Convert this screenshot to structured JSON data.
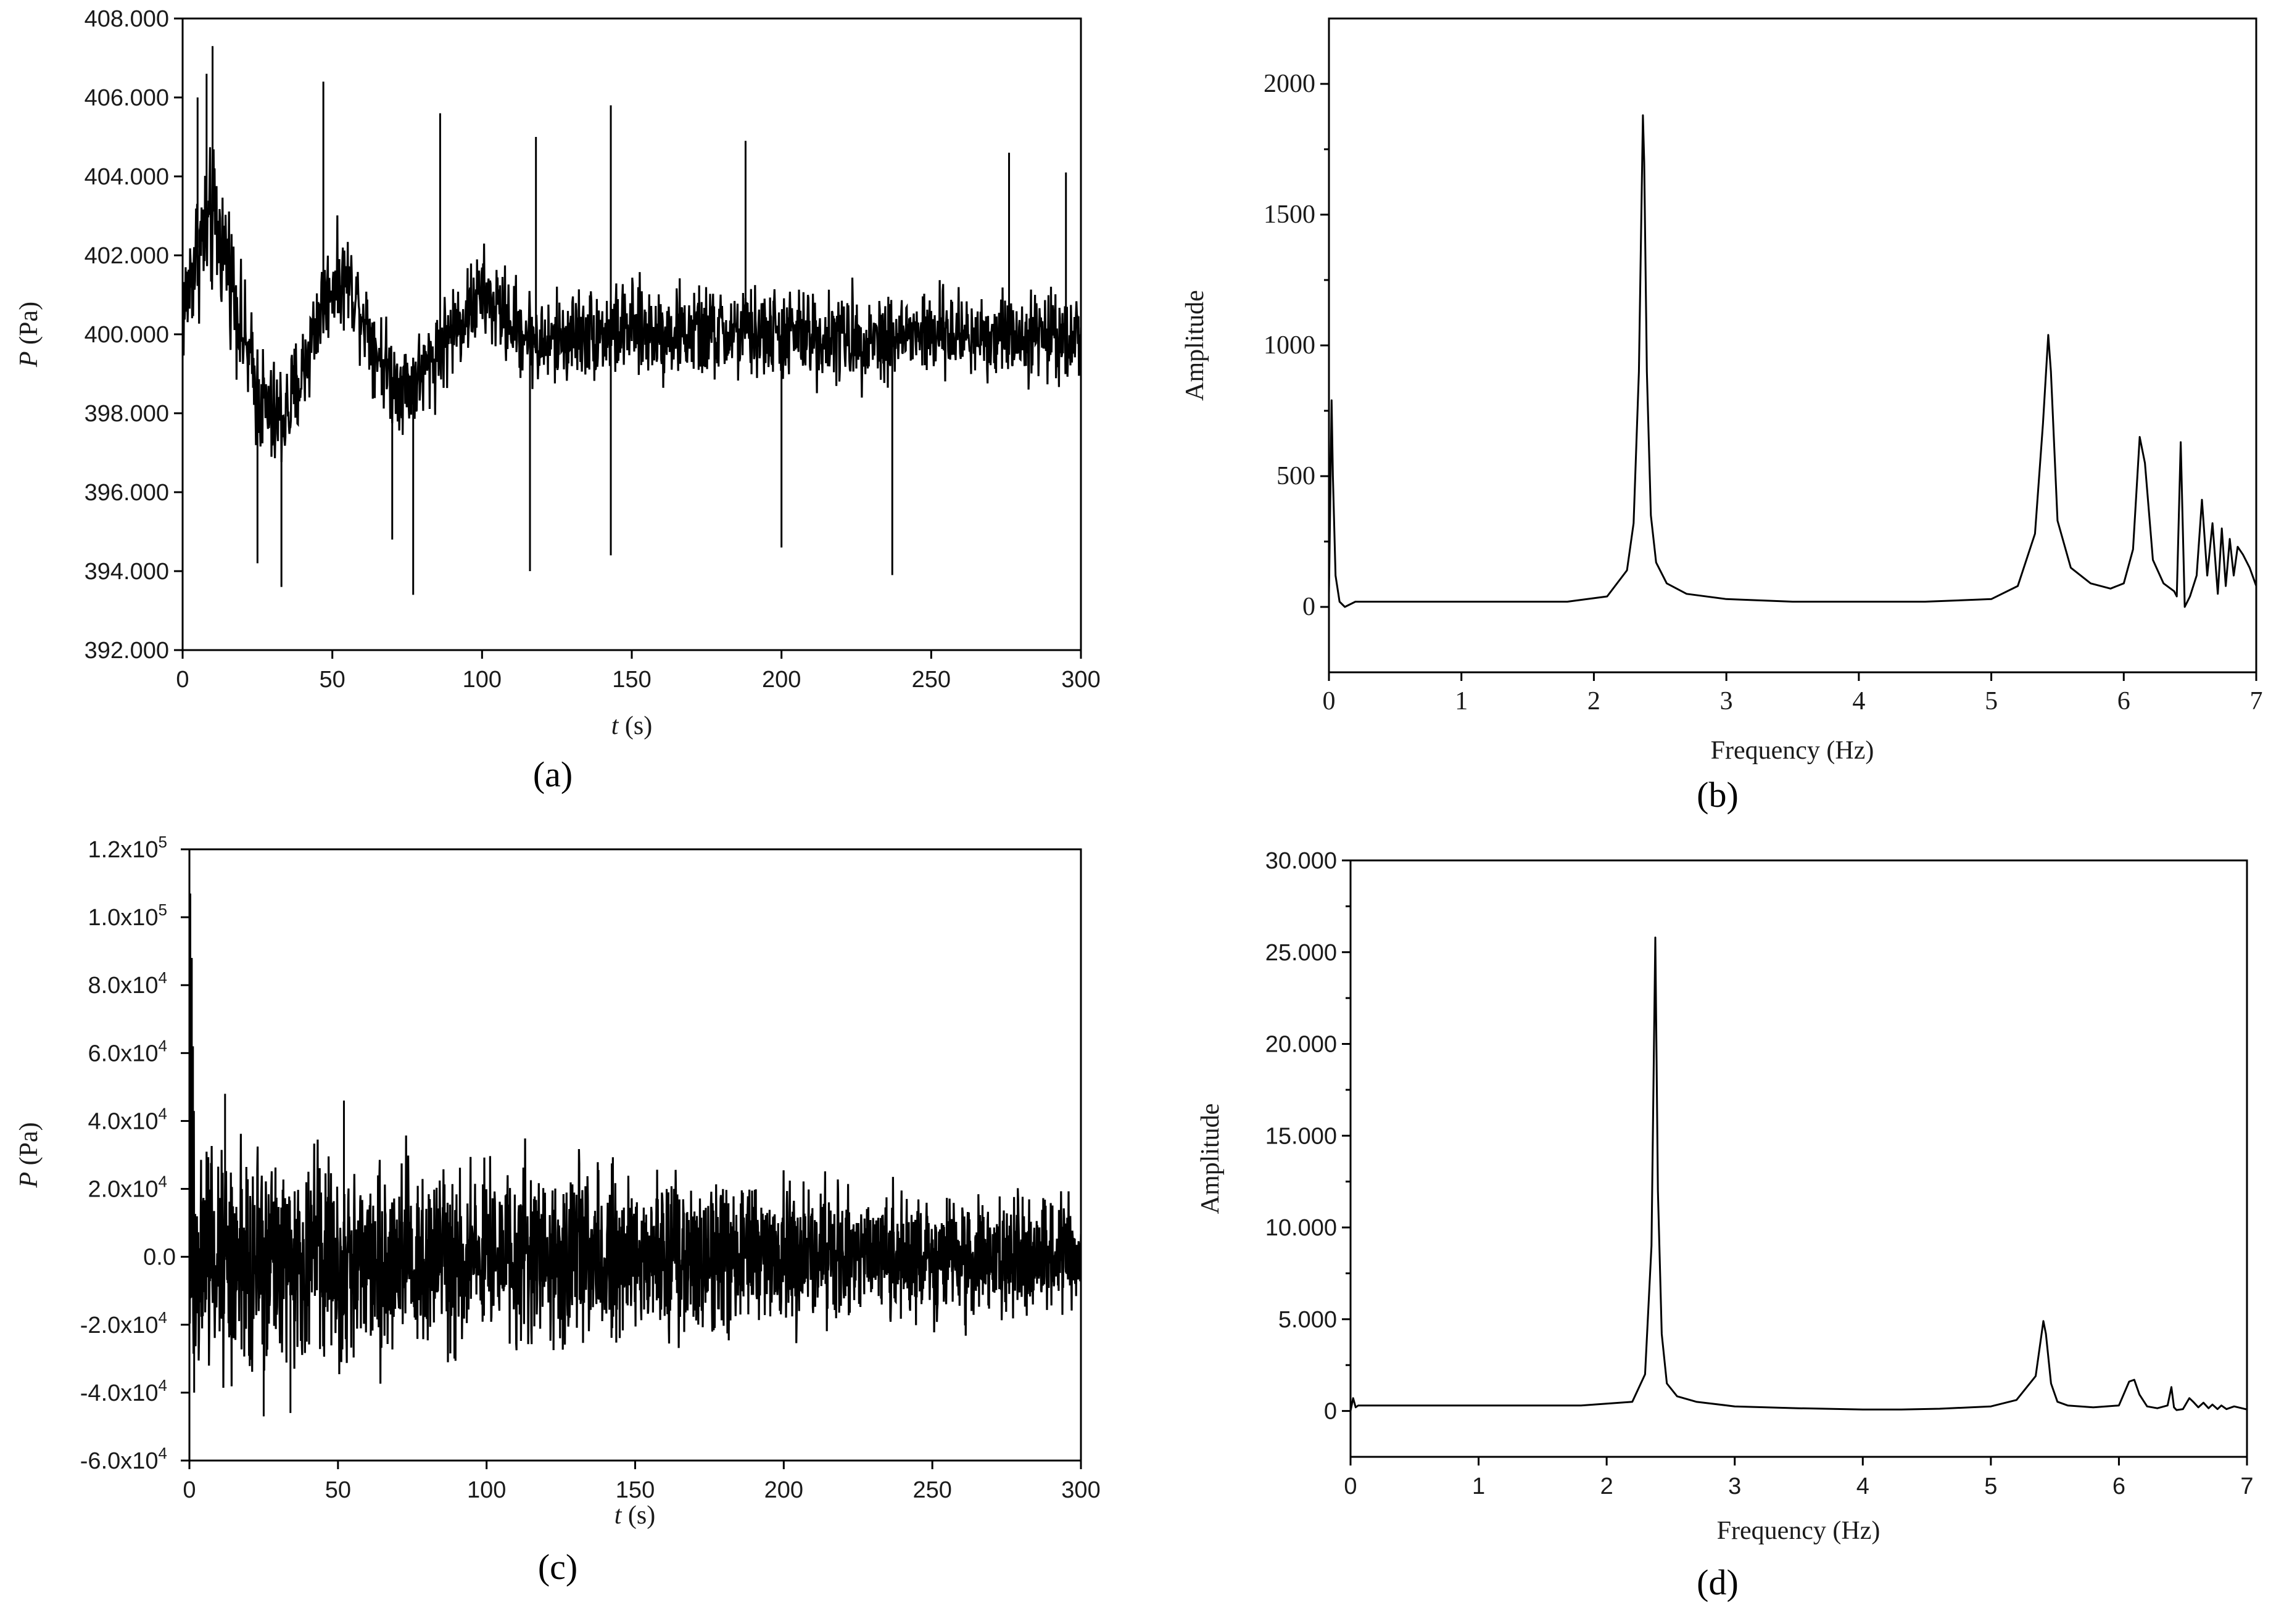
{
  "chart_data": [
    {
      "panel": "(a)",
      "type": "line",
      "xlabel_var": "t",
      "xlabel_unit": "(s)",
      "ylabel_var": "P",
      "ylabel_unit": "(Pa)",
      "xlim": [
        0,
        300
      ],
      "ylim": [
        392,
        408
      ],
      "xticks": [
        0,
        50,
        100,
        150,
        200,
        250,
        300
      ],
      "xtick_labels": [
        "0",
        "50",
        "100",
        "150",
        "200",
        "250",
        "300"
      ],
      "yticks": [
        392,
        394,
        396,
        398,
        400,
        402,
        404,
        406,
        408
      ],
      "ytick_labels": [
        "392.000",
        "394.000",
        "396.000",
        "398.000",
        "400.000",
        "402.000",
        "404.000",
        "406.000",
        "408.000"
      ],
      "envelope": {
        "t": [
          0,
          5,
          10,
          15,
          20,
          25,
          30,
          35,
          40,
          45,
          50,
          55,
          60,
          65,
          70,
          75,
          80,
          90,
          100,
          110,
          120,
          130,
          150,
          175,
          200,
          225,
          250,
          275,
          300
        ],
        "mean": [
          400.5,
          402.2,
          402.8,
          402.0,
          400.0,
          398.5,
          397.8,
          398.0,
          399.0,
          400.4,
          401.3,
          401.4,
          400.6,
          399.6,
          398.9,
          398.7,
          399.0,
          400.1,
          401.0,
          400.3,
          399.7,
          400.0,
          400.1,
          400.0,
          400.0,
          399.9,
          400.0,
          400.0,
          400.0
        ],
        "amp": [
          1.8,
          2.2,
          2.4,
          2.0,
          1.8,
          1.9,
          1.9,
          1.8,
          1.7,
          1.6,
          1.5,
          1.5,
          1.5,
          1.5,
          1.5,
          1.5,
          1.5,
          1.5,
          1.5,
          1.5,
          1.5,
          1.5,
          1.5,
          1.5,
          1.5,
          1.5,
          1.4,
          1.4,
          1.4
        ]
      },
      "spikes": [
        {
          "t": 10,
          "y": 407.3
        },
        {
          "t": 8,
          "y": 406.6
        },
        {
          "t": 47,
          "y": 406.4
        },
        {
          "t": 143,
          "y": 405.8
        },
        {
          "t": 86,
          "y": 405.6
        },
        {
          "t": 33,
          "y": 393.6
        },
        {
          "t": 77,
          "y": 393.4
        },
        {
          "t": 143,
          "y": 394.4
        },
        {
          "t": 116,
          "y": 394.0
        },
        {
          "t": 200,
          "y": 394.6
        },
        {
          "t": 237,
          "y": 393.9
        },
        {
          "t": 25,
          "y": 394.2
        },
        {
          "t": 70,
          "y": 394.8
        },
        {
          "t": 118,
          "y": 405.0
        },
        {
          "t": 188,
          "y": 404.9
        },
        {
          "t": 276,
          "y": 404.6
        },
        {
          "t": 295,
          "y": 404.1
        },
        {
          "t": 5,
          "y": 406.0
        }
      ]
    },
    {
      "panel": "(b)",
      "type": "line",
      "xlabel": "Frequency (Hz)",
      "ylabel": "Amplitude",
      "xlim": [
        0,
        7
      ],
      "ylim": [
        -250,
        2250
      ],
      "xticks": [
        0,
        1,
        2,
        3,
        4,
        5,
        6,
        7
      ],
      "xtick_labels": [
        "0",
        "1",
        "2",
        "3",
        "4",
        "5",
        "6",
        "7"
      ],
      "yticks": [
        0,
        500,
        1000,
        1500,
        2000
      ],
      "ytick_labels": [
        "0",
        "500",
        "1000",
        "1500",
        "2000"
      ],
      "x": [
        0,
        0.01,
        0.02,
        0.03,
        0.05,
        0.08,
        0.12,
        0.2,
        0.4,
        1.0,
        1.8,
        2.1,
        2.25,
        2.3,
        2.34,
        2.37,
        2.38,
        2.4,
        2.43,
        2.47,
        2.55,
        2.7,
        3.0,
        3.5,
        4.0,
        4.5,
        5.0,
        5.2,
        5.33,
        5.39,
        5.43,
        5.45,
        5.5,
        5.6,
        5.75,
        5.9,
        6.0,
        6.07,
        6.12,
        6.16,
        6.22,
        6.3,
        6.38,
        6.4,
        6.43,
        6.46,
        6.5,
        6.55,
        6.59,
        6.63,
        6.67,
        6.71,
        6.74,
        6.77,
        6.8,
        6.83,
        6.86,
        6.9,
        6.95,
        7.0
      ],
      "y": [
        50,
        400,
        790,
        500,
        120,
        20,
        0,
        20,
        20,
        20,
        20,
        40,
        140,
        320,
        900,
        1880,
        1700,
        900,
        350,
        170,
        90,
        50,
        30,
        20,
        20,
        20,
        30,
        80,
        280,
        700,
        1040,
        900,
        330,
        150,
        90,
        70,
        90,
        220,
        650,
        550,
        180,
        90,
        60,
        40,
        630,
        0,
        40,
        120,
        410,
        120,
        320,
        50,
        300,
        80,
        260,
        120,
        230,
        200,
        150,
        80
      ]
    },
    {
      "panel": "(c)",
      "type": "line",
      "xlabel_var": "t",
      "xlabel_unit": "(s)",
      "ylabel_var": "P",
      "ylabel_unit": "(Pa)",
      "xlim": [
        0,
        300
      ],
      "ylim": [
        -60000,
        120000
      ],
      "xticks": [
        0,
        50,
        100,
        150,
        200,
        250,
        300
      ],
      "xtick_labels": [
        "0",
        "50",
        "100",
        "150",
        "200",
        "250",
        "300"
      ],
      "yticks": [
        -60000,
        -40000,
        -20000,
        0,
        20000,
        40000,
        60000,
        80000,
        100000,
        120000
      ],
      "ytick_labels": [
        {
          "base": "-6.0x10",
          "exp": "4"
        },
        {
          "base": "-4.0x10",
          "exp": "4"
        },
        {
          "base": "-2.0x10",
          "exp": "4"
        },
        {
          "base": "0.0",
          "exp": ""
        },
        {
          "base": "2.0x10",
          "exp": "4"
        },
        {
          "base": "4.0x10",
          "exp": "4"
        },
        {
          "base": "6.0x10",
          "exp": "4"
        },
        {
          "base": "8.0x10",
          "exp": "4"
        },
        {
          "base": "1.0x10",
          "exp": "5"
        },
        {
          "base": "1.2x10",
          "exp": "5"
        }
      ],
      "envelope": {
        "t": [
          0,
          10,
          25,
          50,
          100,
          150,
          200,
          250,
          300
        ],
        "amp": [
          45000,
          42000,
          38000,
          36000,
          33000,
          30000,
          25000,
          22000,
          20000
        ]
      },
      "spikes": [
        {
          "t": 0.3,
          "y": 107000
        },
        {
          "t": 0.8,
          "y": 88000
        },
        {
          "t": 1.2,
          "y": 62000
        },
        {
          "t": 1.6,
          "y": -40000
        },
        {
          "t": 12,
          "y": 48000
        },
        {
          "t": 25,
          "y": -47000
        },
        {
          "t": 52,
          "y": 46000
        },
        {
          "t": 34,
          "y": -46000
        }
      ]
    },
    {
      "panel": "(d)",
      "type": "line",
      "xlabel": "Frequency (Hz)",
      "ylabel": "Amplitude",
      "xlim": [
        0,
        7
      ],
      "ylim": [
        -2500,
        30000
      ],
      "xticks": [
        0,
        1,
        2,
        3,
        4,
        5,
        6,
        7
      ],
      "xtick_labels": [
        "0",
        "1",
        "2",
        "3",
        "4",
        "5",
        "6",
        "7"
      ],
      "yticks": [
        0,
        5000,
        10000,
        15000,
        20000,
        25000,
        30000
      ],
      "ytick_labels": [
        "0",
        "5.000",
        "10.000",
        "15.000",
        "20.000",
        "25.000",
        "30.000"
      ],
      "x": [
        0,
        0.02,
        0.04,
        0.06,
        0.1,
        0.3,
        1.0,
        1.8,
        2.2,
        2.3,
        2.35,
        2.38,
        2.4,
        2.43,
        2.47,
        2.55,
        2.7,
        3.0,
        3.5,
        4.0,
        4.3,
        4.6,
        5.0,
        5.2,
        5.35,
        5.41,
        5.43,
        5.47,
        5.52,
        5.6,
        5.8,
        6.0,
        6.08,
        6.12,
        6.16,
        6.22,
        6.3,
        6.38,
        6.41,
        6.43,
        6.45,
        6.5,
        6.55,
        6.58,
        6.62,
        6.66,
        6.7,
        6.73,
        6.77,
        6.8,
        6.84,
        6.9,
        7.0
      ],
      "y": [
        0,
        700,
        200,
        300,
        300,
        300,
        300,
        300,
        500,
        2000,
        9000,
        25800,
        12000,
        4200,
        1500,
        800,
        500,
        250,
        150,
        80,
        80,
        120,
        250,
        600,
        1900,
        4900,
        4200,
        1500,
        500,
        300,
        200,
        300,
        1600,
        1700,
        900,
        250,
        150,
        300,
        1300,
        200,
        50,
        100,
        700,
        500,
        200,
        450,
        150,
        350,
        100,
        300,
        100,
        250,
        80
      ]
    }
  ]
}
